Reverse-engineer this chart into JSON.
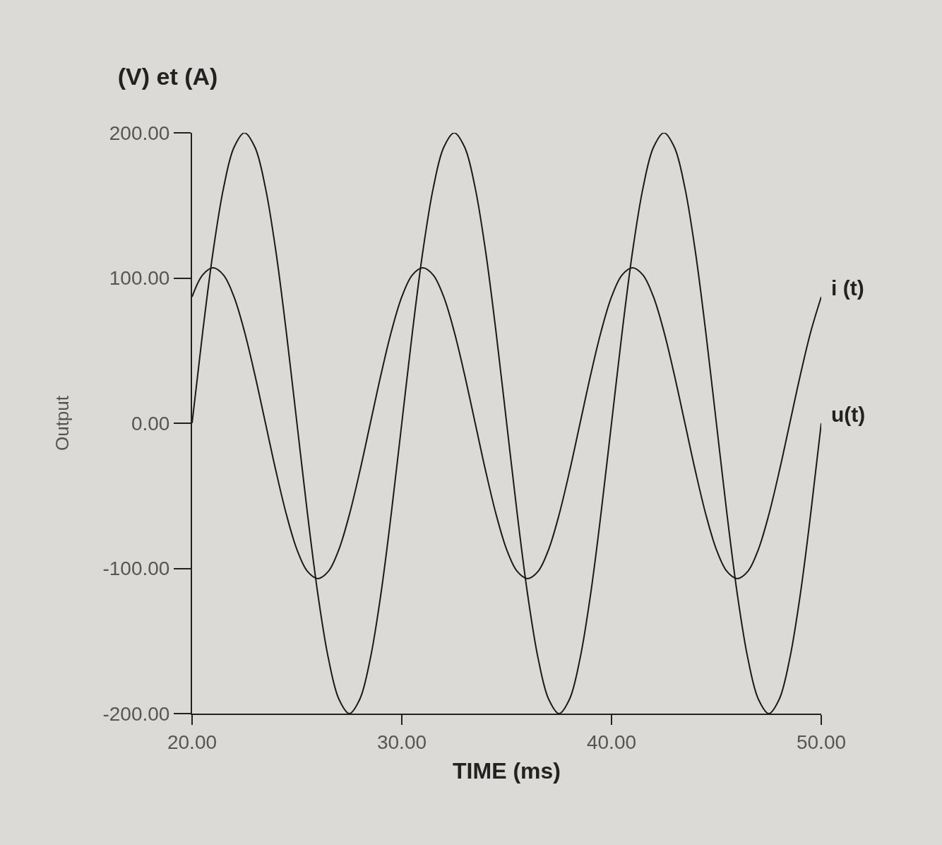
{
  "chart_data": {
    "type": "line",
    "title": "(V) et (A)",
    "xlabel": "TIME (ms)",
    "ylabel": "Output",
    "x": [
      20,
      20.5,
      21,
      21.5,
      22,
      22.5,
      23,
      23.5,
      24,
      24.5,
      25,
      25.5,
      26,
      26.5,
      27,
      27.5,
      28,
      28.5,
      29,
      29.5,
      30,
      30.5,
      31,
      31.5,
      32,
      32.5,
      33,
      33.5,
      34,
      34.5,
      35,
      35.5,
      36,
      36.5,
      37,
      37.5,
      38,
      38.5,
      39,
      39.5,
      40,
      40.5,
      41,
      41.5,
      42,
      42.5,
      43,
      43.5,
      44,
      44.5,
      45,
      45.5,
      46,
      46.5,
      47,
      47.5,
      48,
      48.5,
      49,
      49.5,
      50
    ],
    "series": [
      {
        "name": "i (t)",
        "color": "#1a1a1a",
        "values": [
          87,
          102,
          107,
          102,
          87,
          63,
          33,
          0,
          -33,
          -63,
          -87,
          -102,
          -107,
          -102,
          -87,
          -63,
          -33,
          0,
          33,
          63,
          87,
          102,
          107,
          102,
          87,
          63,
          33,
          0,
          -33,
          -63,
          -87,
          -102,
          -107,
          -102,
          -87,
          -63,
          -33,
          0,
          33,
          63,
          87,
          102,
          107,
          102,
          87,
          63,
          33,
          0,
          -33,
          -63,
          -87,
          -102,
          -107,
          -102,
          -87,
          -63,
          -33,
          0,
          33,
          63,
          87
        ]
      },
      {
        "name": "u(t)",
        "color": "#1a1a1a",
        "values": [
          0,
          62,
          118,
          162,
          190,
          200,
          190,
          162,
          118,
          62,
          0,
          -62,
          -118,
          -162,
          -190,
          -200,
          -190,
          -162,
          -118,
          -62,
          0,
          62,
          118,
          162,
          190,
          200,
          190,
          162,
          118,
          62,
          0,
          -62,
          -118,
          -162,
          -190,
          -200,
          -190,
          -162,
          -118,
          -62,
          0,
          62,
          118,
          162,
          190,
          200,
          190,
          162,
          118,
          62,
          0,
          -62,
          -118,
          -162,
          -190,
          -200,
          -190,
          -162,
          -118,
          -62,
          0
        ]
      }
    ],
    "xlim": [
      20,
      50
    ],
    "xticks": [
      {
        "value": 20,
        "label": "20.00"
      },
      {
        "value": 30,
        "label": "30.00"
      },
      {
        "value": 40,
        "label": "40.00"
      },
      {
        "value": 50,
        "label": "50.00"
      }
    ],
    "ylim": [
      -200,
      200
    ],
    "yticks": [
      {
        "value": -200,
        "label": "-200.00"
      },
      {
        "value": -100,
        "label": "-100.00"
      },
      {
        "value": 0,
        "label": "0.00"
      },
      {
        "value": 100,
        "label": "100.00"
      },
      {
        "value": 200,
        "label": "200.00"
      }
    ],
    "grid": false,
    "legend": false,
    "marker": "none",
    "line_style": "solid"
  }
}
